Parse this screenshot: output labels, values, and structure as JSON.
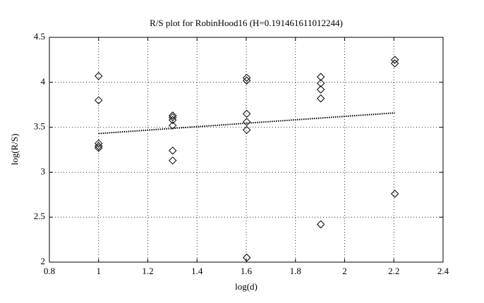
{
  "chart_data": {
    "type": "scatter",
    "title": "R/S plot for RobinHood16 (H=0.191461611012244)",
    "x_label": "log(d)",
    "y_label": "log(R/S)",
    "series": [
      {
        "marker": "diamond",
        "color": "#000000",
        "x": [
          1,
          1,
          1,
          1,
          1,
          1.301,
          1.301,
          1.301,
          1.301,
          1.301,
          1.301,
          1.602,
          1.602,
          1.602,
          1.602,
          1.602,
          1.602,
          1.903,
          1.903,
          1.903,
          1.903,
          1.903,
          2.204,
          2.204,
          2.204
        ],
        "values": [
          4.07,
          3.8,
          3.32,
          3.29,
          3.27,
          3.63,
          3.61,
          3.58,
          3.52,
          3.24,
          3.13,
          4.05,
          4.02,
          3.65,
          3.56,
          3.47,
          2.05,
          4.06,
          3.99,
          3.92,
          3.82,
          2.42,
          4.25,
          4.21,
          2.76
        ]
      },
      {
        "marker": "dotted-line",
        "color": "#000000",
        "x": [
          1,
          2.204
        ],
        "values": [
          3.43,
          3.66
        ]
      }
    ],
    "xlim": [
      0.8,
      2.4
    ],
    "xticks": [
      0.8,
      1,
      1.2,
      1.4,
      1.6,
      1.8,
      2,
      2.2,
      2.4
    ],
    "ylim": [
      2,
      4.5
    ],
    "yticks": [
      2,
      2.5,
      3,
      3.5,
      4,
      4.5
    ],
    "grid": true
  }
}
